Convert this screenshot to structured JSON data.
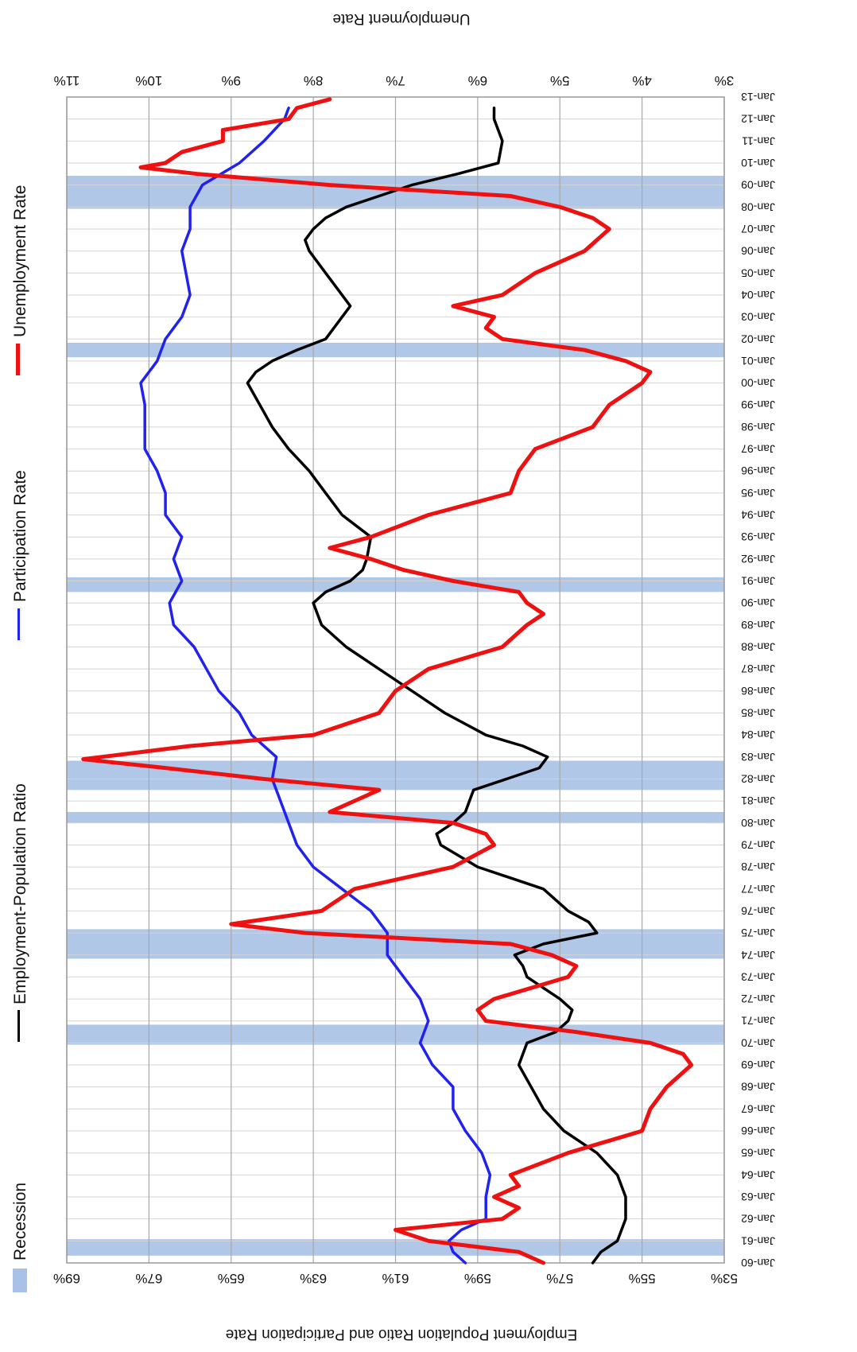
{
  "chart_data": {
    "type": "line",
    "orientation": "rotated-90-clockwise",
    "title": "",
    "left_axis_label": "Employment Population Ratio and Participation Rate",
    "right_axis_label": "Unemployment Rate",
    "left_ticks": [
      "53%",
      "55%",
      "57%",
      "59%",
      "61%",
      "63%",
      "65%",
      "67%",
      "69%"
    ],
    "left_range": [
      53,
      69
    ],
    "right_ticks": [
      "3%",
      "4%",
      "5%",
      "6%",
      "7%",
      "8%",
      "9%",
      "10%",
      "11%"
    ],
    "right_range": [
      3,
      11
    ],
    "x_ticks": [
      "Jan-60",
      "Jan-61",
      "Jan-62",
      "Jan-63",
      "Jan-64",
      "Jan-65",
      "Jan-66",
      "Jan-67",
      "Jan-68",
      "Jan-69",
      "Jan-70",
      "Jan-71",
      "Jan-72",
      "Jan-73",
      "Jan-74",
      "Jan-75",
      "Jan-76",
      "Jan-77",
      "Jan-78",
      "Jan-79",
      "Jan-80",
      "Jan-81",
      "Jan-82",
      "Jan-83",
      "Jan-84",
      "Jan-85",
      "Jan-86",
      "Jan-87",
      "Jan-88",
      "Jan-89",
      "Jan-90",
      "Jan-91",
      "Jan-92",
      "Jan-93",
      "Jan-94",
      "Jan-95",
      "Jan-96",
      "Jan-97",
      "Jan-98",
      "Jan-99",
      "Jan-00",
      "Jan-01",
      "Jan-02",
      "Jan-03",
      "Jan-04",
      "Jan-05",
      "Jan-06",
      "Jan-07",
      "Jan-08",
      "Jan-09",
      "Jan-10",
      "Jan-11",
      "Jan-12",
      "Jan-13"
    ],
    "x_range": [
      1960,
      2013
    ],
    "grid": true,
    "legend_position": "right side",
    "legend": [
      {
        "name": "Recession",
        "kind": "band",
        "color": "#a9c1e6"
      },
      {
        "name": "Employment-Population Ratio",
        "kind": "line",
        "color": "#000000"
      },
      {
        "name": "Participation Rate",
        "kind": "line",
        "color": "#2222ee"
      },
      {
        "name": "Unemployment Rate",
        "kind": "line",
        "color": "#ee1111"
      }
    ],
    "recessions": [
      [
        1960.33,
        1961.08
      ],
      [
        1969.92,
        1970.83
      ],
      [
        1973.83,
        1975.17
      ],
      [
        1980.0,
        1980.5
      ],
      [
        1981.5,
        1982.83
      ],
      [
        1990.5,
        1991.17
      ],
      [
        2001.17,
        2001.83
      ],
      [
        2007.92,
        2009.42
      ]
    ],
    "series": [
      {
        "name": "Employment-Population Ratio",
        "axis": "left",
        "color": "#000000",
        "x": [
          1960.0,
          1960.5,
          1961.0,
          1961.5,
          1962.0,
          1963.0,
          1964.0,
          1965.0,
          1966.0,
          1967.0,
          1968.0,
          1969.0,
          1970.0,
          1970.5,
          1971.0,
          1971.5,
          1972.0,
          1973.0,
          1973.5,
          1974.0,
          1974.5,
          1975.0,
          1975.5,
          1976.0,
          1977.0,
          1978.0,
          1979.0,
          1979.5,
          1980.0,
          1980.5,
          1981.0,
          1981.5,
          1982.0,
          1982.5,
          1983.0,
          1983.5,
          1984.0,
          1985.0,
          1986.0,
          1987.0,
          1988.0,
          1989.0,
          1990.0,
          1990.5,
          1991.0,
          1991.5,
          1992.0,
          1993.0,
          1994.0,
          1995.0,
          1996.0,
          1997.0,
          1998.0,
          1999.0,
          2000.0,
          2000.5,
          2001.0,
          2001.5,
          2002.0,
          2003.0,
          2003.5,
          2004.0,
          2005.0,
          2006.0,
          2006.5,
          2007.0,
          2007.5,
          2008.0,
          2008.5,
          2009.0,
          2009.5,
          2010.0,
          2011.0,
          2012.0,
          2012.5
        ],
        "values": [
          56.2,
          56.0,
          55.6,
          55.5,
          55.4,
          55.4,
          55.6,
          56.1,
          56.9,
          57.4,
          57.7,
          58.0,
          57.8,
          57.1,
          56.8,
          56.7,
          57.0,
          57.8,
          57.9,
          58.1,
          57.4,
          56.1,
          56.3,
          56.8,
          57.4,
          59.0,
          59.9,
          60.0,
          59.6,
          59.3,
          59.2,
          59.1,
          58.3,
          57.5,
          57.3,
          57.9,
          58.8,
          59.8,
          60.6,
          61.4,
          62.2,
          62.8,
          63.0,
          62.7,
          62.1,
          61.8,
          61.7,
          61.6,
          62.3,
          62.7,
          63.1,
          63.6,
          64.0,
          64.3,
          64.6,
          64.4,
          64.0,
          63.4,
          62.7,
          62.3,
          62.1,
          62.3,
          62.7,
          63.1,
          63.2,
          63.0,
          62.7,
          62.2,
          61.4,
          60.6,
          59.5,
          58.5,
          58.4,
          58.6,
          58.6
        ]
      },
      {
        "name": "Participation Rate",
        "axis": "left",
        "color": "#2222ee",
        "x": [
          1960.0,
          1960.5,
          1961.0,
          1961.5,
          1962.0,
          1963.0,
          1964.0,
          1965.0,
          1966.0,
          1967.0,
          1968.0,
          1969.0,
          1970.0,
          1971.0,
          1972.0,
          1973.0,
          1974.0,
          1975.0,
          1976.0,
          1977.0,
          1978.0,
          1979.0,
          1980.0,
          1981.0,
          1982.0,
          1983.0,
          1984.0,
          1985.0,
          1986.0,
          1987.0,
          1988.0,
          1989.0,
          1990.0,
          1991.0,
          1992.0,
          1993.0,
          1994.0,
          1995.0,
          1996.0,
          1997.0,
          1998.0,
          1999.0,
          2000.0,
          2001.0,
          2002.0,
          2003.0,
          2004.0,
          2005.0,
          2006.0,
          2007.0,
          2008.0,
          2009.0,
          2010.0,
          2011.0,
          2012.0,
          2012.5
        ],
        "values": [
          59.3,
          59.6,
          59.7,
          59.4,
          58.8,
          58.8,
          58.7,
          58.9,
          59.3,
          59.6,
          59.6,
          60.1,
          60.4,
          60.2,
          60.4,
          60.8,
          61.2,
          61.2,
          61.6,
          62.3,
          63.0,
          63.4,
          63.6,
          63.8,
          64.0,
          63.9,
          64.5,
          64.8,
          65.3,
          65.6,
          65.9,
          66.4,
          66.5,
          66.2,
          66.4,
          66.2,
          66.6,
          66.6,
          66.8,
          67.1,
          67.1,
          67.1,
          67.2,
          66.8,
          66.6,
          66.2,
          66.0,
          66.1,
          66.2,
          66.0,
          66.0,
          65.7,
          64.8,
          64.2,
          63.7,
          63.6
        ]
      },
      {
        "name": "Unemployment Rate",
        "axis": "right",
        "color": "#ee1111",
        "x": [
          1960.0,
          1960.5,
          1961.0,
          1961.5,
          1962.0,
          1962.5,
          1963.0,
          1963.5,
          1964.0,
          1965.0,
          1966.0,
          1967.0,
          1968.0,
          1969.0,
          1969.5,
          1970.0,
          1970.5,
          1971.0,
          1971.5,
          1972.0,
          1973.0,
          1973.5,
          1974.0,
          1974.5,
          1975.0,
          1975.4,
          1976.0,
          1977.0,
          1978.0,
          1979.0,
          1979.5,
          1980.0,
          1980.5,
          1981.0,
          1981.5,
          1982.0,
          1982.5,
          1982.9,
          1983.5,
          1984.0,
          1985.0,
          1986.0,
          1987.0,
          1988.0,
          1989.0,
          1989.5,
          1990.0,
          1990.5,
          1991.0,
          1991.5,
          1992.0,
          1992.5,
          1993.0,
          1994.0,
          1995.0,
          1996.0,
          1997.0,
          1998.0,
          1999.0,
          2000.0,
          2000.5,
          2001.0,
          2001.5,
          2002.0,
          2002.5,
          2003.0,
          2003.5,
          2004.0,
          2004.5,
          2005.0,
          2006.0,
          2007.0,
          2007.5,
          2008.0,
          2008.5,
          2009.0,
          2009.5,
          2009.8,
          2010.0,
          2010.5,
          2011.0,
          2011.5,
          2012.0,
          2012.5,
          2012.9
        ],
        "values": [
          5.2,
          5.5,
          6.6,
          7.0,
          5.7,
          5.5,
          5.8,
          5.5,
          5.6,
          4.9,
          4.0,
          3.9,
          3.7,
          3.4,
          3.5,
          3.9,
          4.8,
          5.9,
          6.0,
          5.8,
          4.9,
          4.8,
          5.1,
          5.6,
          8.1,
          9.0,
          7.9,
          7.5,
          6.3,
          5.8,
          5.9,
          6.3,
          7.8,
          7.5,
          7.2,
          8.6,
          9.8,
          10.8,
          9.5,
          8.0,
          7.2,
          7.0,
          6.6,
          5.7,
          5.4,
          5.2,
          5.4,
          5.5,
          6.3,
          6.9,
          7.3,
          7.8,
          7.3,
          6.6,
          5.6,
          5.5,
          5.3,
          4.6,
          4.4,
          4.0,
          3.9,
          4.2,
          4.7,
          5.7,
          5.9,
          5.8,
          6.3,
          5.7,
          5.5,
          5.3,
          4.7,
          4.4,
          4.6,
          5.0,
          5.6,
          7.8,
          9.4,
          10.1,
          9.8,
          9.6,
          9.1,
          9.1,
          8.3,
          8.2,
          7.8
        ]
      }
    ]
  }
}
